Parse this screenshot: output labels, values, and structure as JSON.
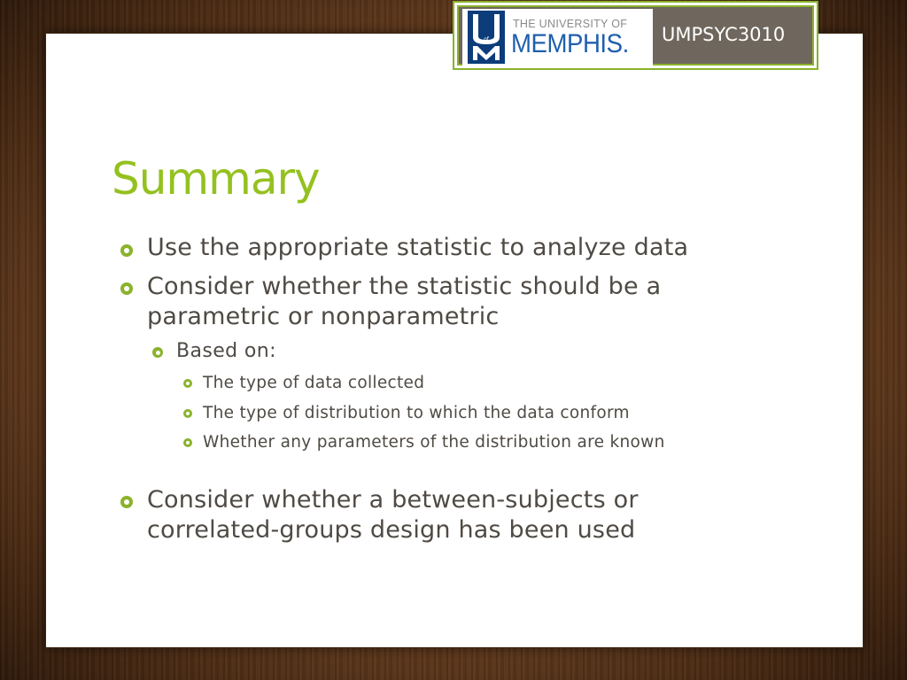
{
  "header": {
    "university_top": "THE UNIVERSITY OF",
    "university_name": "MEMPHIS.",
    "course_code": "UMPSYC3010",
    "logo_letters": "UM"
  },
  "slide": {
    "title": "Summary",
    "bullets": [
      {
        "level": 1,
        "text": "Use the appropriate statistic to analyze data"
      },
      {
        "level": 1,
        "text": "Consider whether the statistic should be a parametric or nonparametric"
      },
      {
        "level": 2,
        "text": "Based on:"
      },
      {
        "level": 3,
        "text": "The type of data collected"
      },
      {
        "level": 3,
        "text": "The type of distribution to which the data conform"
      },
      {
        "level": 3,
        "text": "Whether any parameters of the distribution are known"
      },
      {
        "level": 1,
        "text": "Consider whether a between-subjects or correlated-groups design has been used"
      }
    ]
  },
  "colors": {
    "title_green": "#94c11f",
    "bullet_green": "#8ab22c",
    "body_text": "#4f4a44",
    "memphis_blue": "#1f5fae",
    "logo_navy": "#0c3c7a",
    "header_gray": "#6f675d"
  }
}
